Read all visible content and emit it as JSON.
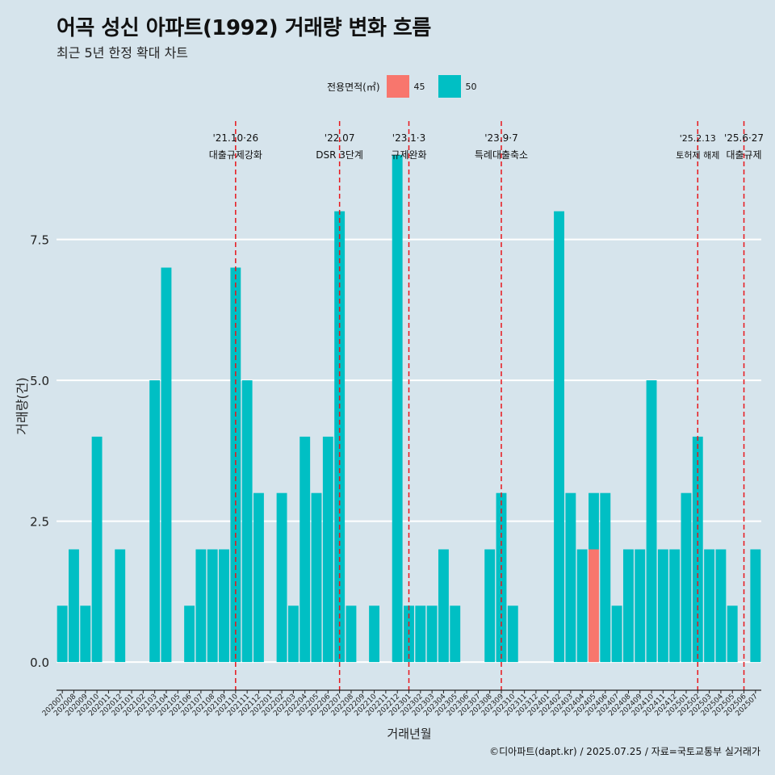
{
  "header": {
    "title": "어곡 성신 아파트(1992) 거래량 변화 흐름",
    "subtitle": "최근 5년 한정 확대 차트"
  },
  "legend": {
    "title": "전용면적(㎡)",
    "items": [
      {
        "label": "45",
        "color": "#f8766d"
      },
      {
        "label": "50",
        "color": "#00bfc4"
      }
    ]
  },
  "caption": "©디아파트(dapt.kr) / 2025.07.25 / 자료=국토교통부 실거래가",
  "chart_data": {
    "type": "bar",
    "xlabel": "거래년월",
    "ylabel": "거래량(건)",
    "ylim": [
      -0.5,
      9.6
    ],
    "yticks": [
      0.0,
      2.5,
      5.0,
      7.5
    ],
    "ytick_labels": [
      "0.0",
      "2.5",
      "5.0",
      "7.5"
    ],
    "categories": [
      "202007",
      "202008",
      "202009",
      "202010",
      "202011",
      "202012",
      "202101",
      "202102",
      "202103",
      "202104",
      "202105",
      "202106",
      "202107",
      "202108",
      "202109",
      "202110",
      "202111",
      "202112",
      "202201",
      "202202",
      "202203",
      "202204",
      "202205",
      "202206",
      "202207",
      "202208",
      "202209",
      "202210",
      "202211",
      "202212",
      "202301",
      "202302",
      "202303",
      "202304",
      "202305",
      "202306",
      "202307",
      "202308",
      "202309",
      "202310",
      "202311",
      "202312",
      "202401",
      "202402",
      "202403",
      "202404",
      "202405",
      "202406",
      "202407",
      "202408",
      "202409",
      "202410",
      "202411",
      "202412",
      "202501",
      "202502",
      "202503",
      "202504",
      "202505",
      "202506",
      "202507"
    ],
    "series": [
      {
        "name": "45",
        "color": "#f8766d",
        "values": [
          0,
          0,
          0,
          0,
          0,
          0,
          0,
          0,
          0,
          0,
          0,
          0,
          0,
          0,
          0,
          0,
          0,
          0,
          0,
          0,
          0,
          0,
          0,
          0,
          0,
          0,
          0,
          0,
          0,
          0,
          0,
          0,
          0,
          0,
          0,
          0,
          0,
          0,
          0,
          0,
          0,
          0,
          0,
          0,
          0,
          0,
          2,
          0,
          0,
          0,
          0,
          0,
          0,
          0,
          0,
          0,
          0,
          0,
          0,
          0,
          0
        ]
      },
      {
        "name": "50",
        "color": "#00bfc4",
        "values": [
          1,
          2,
          1,
          4,
          0,
          2,
          0,
          0,
          5,
          7,
          0,
          1,
          2,
          2,
          2,
          7,
          5,
          3,
          0,
          3,
          1,
          4,
          3,
          4,
          8,
          1,
          0,
          1,
          0,
          9,
          1,
          1,
          1,
          2,
          1,
          0,
          0,
          2,
          3,
          1,
          0,
          0,
          0,
          8,
          3,
          2,
          1,
          3,
          1,
          2,
          2,
          5,
          2,
          2,
          3,
          4,
          2,
          2,
          1,
          0,
          2
        ]
      }
    ],
    "annotations": [
      {
        "category": "202110",
        "date": "'21.10·26",
        "label": "대출규제강화",
        "small": false
      },
      {
        "category": "202207",
        "date": "'22.07",
        "label": "DSR 3단계",
        "small": false
      },
      {
        "category": "202301",
        "date": "'23.1·3",
        "label": "규제완화",
        "small": false
      },
      {
        "category": "202309",
        "date": "'23.9·7",
        "label": "특례대출축소",
        "small": false
      },
      {
        "category": "202502",
        "date": "'25.2.13",
        "label": "토허제 해제",
        "small": true
      },
      {
        "category": "202506",
        "date": "'25.6·27",
        "label": "대출규제",
        "small": false
      }
    ]
  }
}
